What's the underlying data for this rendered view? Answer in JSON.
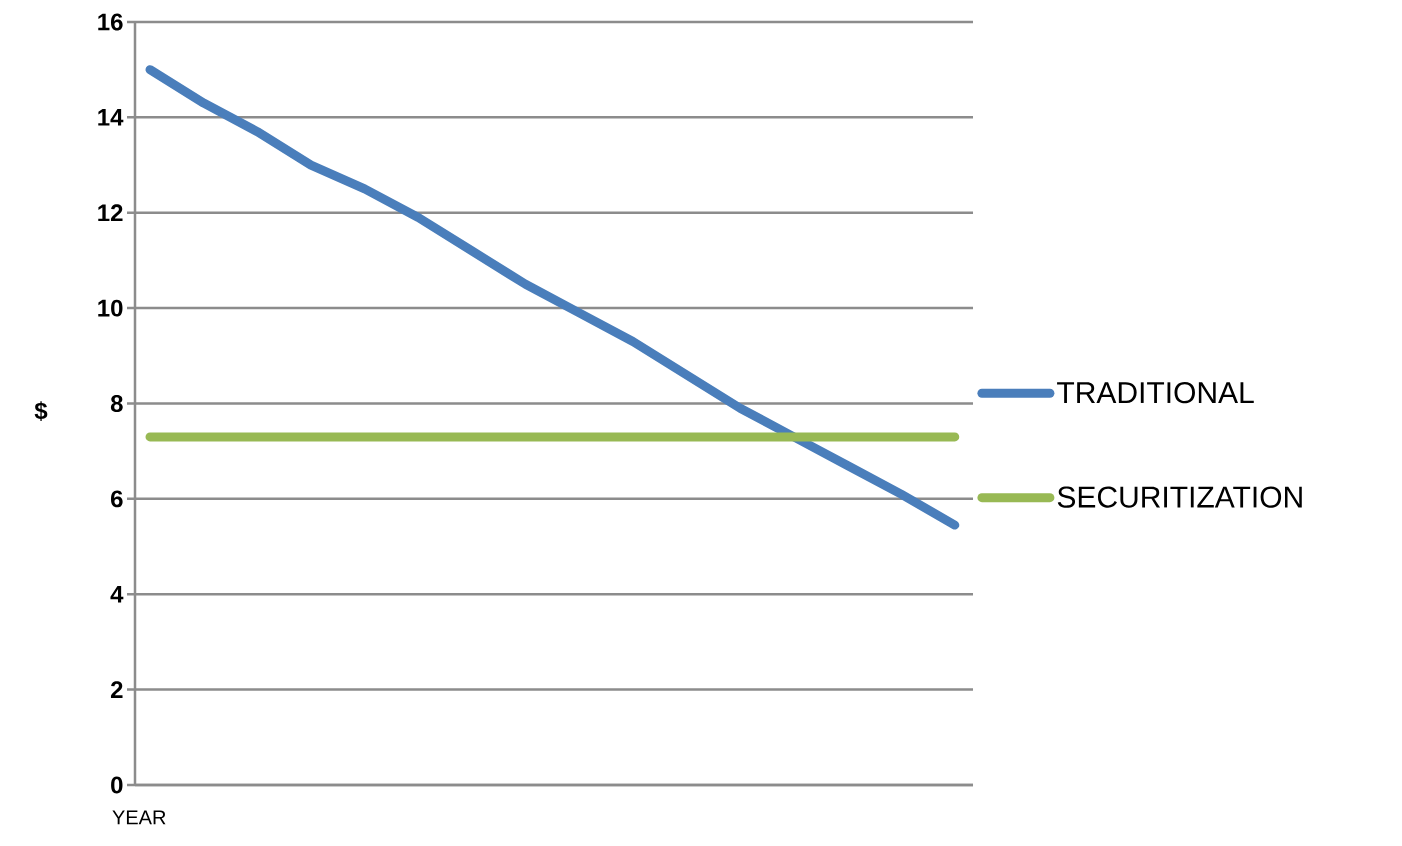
{
  "chart_data": {
    "type": "line",
    "xlabel": "YEAR",
    "ylabel": "$",
    "categories": [
      null,
      null,
      null,
      null,
      null,
      null,
      null,
      null,
      null,
      null,
      null,
      null,
      null,
      null,
      null,
      null
    ],
    "series": [
      {
        "name": "TRADITIONAL",
        "color": "#4a7ebb",
        "values": [
          15.0,
          14.3,
          13.7,
          13.0,
          12.5,
          11.9,
          11.2,
          10.5,
          9.9,
          9.3,
          8.6,
          7.9,
          7.3,
          6.7,
          6.1,
          5.45
        ]
      },
      {
        "name": "SECURITIZATION",
        "color": "#98b954",
        "values": [
          7.3,
          7.3,
          7.3,
          7.3,
          7.3,
          7.3,
          7.3,
          7.3,
          7.3,
          7.3,
          7.3,
          7.3,
          7.3,
          7.3,
          7.3,
          7.3
        ]
      }
    ],
    "ylim": [
      0,
      16
    ],
    "yticks": [
      0,
      2,
      4,
      6,
      8,
      10,
      12,
      14,
      16
    ],
    "grid": "y",
    "legend": "right",
    "marker": "none",
    "line_style": "solid"
  }
}
